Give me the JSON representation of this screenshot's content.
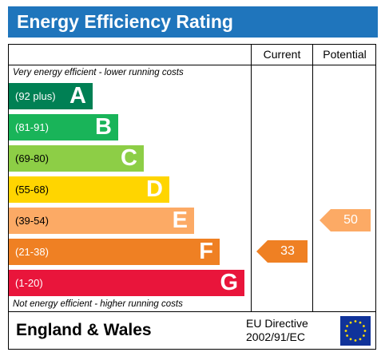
{
  "title": "Energy Efficiency Rating",
  "columns": {
    "current": "Current",
    "potential": "Potential"
  },
  "notes": {
    "top": "Very energy efficient - lower running costs",
    "bottom": "Not energy efficient - higher running costs"
  },
  "footer": {
    "region": "England & Wales",
    "directive_line1": "EU Directive",
    "directive_line2": "2002/91/EC",
    "flag_icon": "eu-flag-icon"
  },
  "chart_data": {
    "type": "bar",
    "categories": [
      "A",
      "B",
      "C",
      "D",
      "E",
      "F",
      "G"
    ],
    "ranges": [
      "(92 plus)",
      "(81-91)",
      "(69-80)",
      "(55-68)",
      "(39-54)",
      "(21-38)",
      "(1-20)"
    ],
    "colors": [
      "#008054",
      "#19b459",
      "#8dce46",
      "#ffd500",
      "#fcaa65",
      "#ef8023",
      "#e9153b"
    ],
    "current": {
      "value": 33,
      "band": "F",
      "color": "#ef8023"
    },
    "potential": {
      "value": 50,
      "band": "E",
      "color": "#fcaa65"
    }
  }
}
